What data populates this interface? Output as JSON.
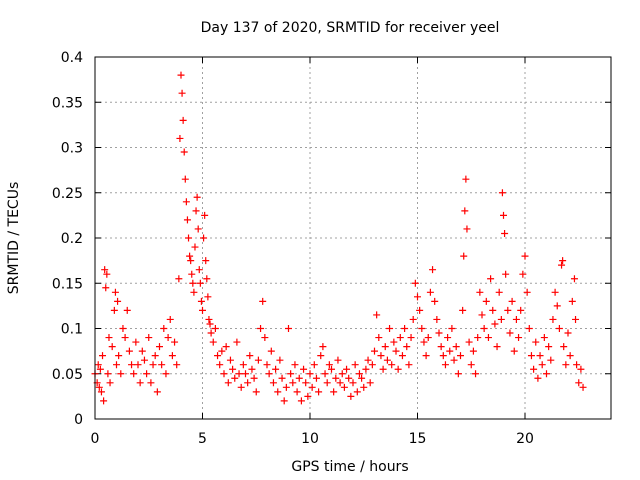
{
  "chart_data": {
    "type": "scatter",
    "title": "Day 137 of 2020, SRMTID for receiver yeel",
    "xlabel": "GPS time / hours",
    "ylabel": "SRMTID / TECUs",
    "xlim": [
      0,
      24
    ],
    "ylim": [
      0,
      0.4
    ],
    "xticks": [
      0,
      5,
      10,
      15,
      20
    ],
    "xtick_labels": [
      "0",
      "5",
      "10",
      "15",
      "20"
    ],
    "yticks": [
      0,
      0.05,
      0.1,
      0.15,
      0.2,
      0.25,
      0.3,
      0.35,
      0.4
    ],
    "ytick_labels": [
      "0",
      "0.05",
      "0.1",
      "0.15",
      "0.2",
      "0.25",
      "0.3",
      "0.35",
      "0.4"
    ],
    "grid": true,
    "marker": "+",
    "series": [
      {
        "name": "SRMTID",
        "color": "#ff0000",
        "points": [
          [
            0.0,
            0.05
          ],
          [
            0.1,
            0.04
          ],
          [
            0.15,
            0.06
          ],
          [
            0.2,
            0.035
          ],
          [
            0.25,
            0.055
          ],
          [
            0.3,
            0.03
          ],
          [
            0.35,
            0.07
          ],
          [
            0.4,
            0.02
          ],
          [
            0.45,
            0.165
          ],
          [
            0.5,
            0.145
          ],
          [
            0.55,
            0.16
          ],
          [
            0.6,
            0.05
          ],
          [
            0.65,
            0.09
          ],
          [
            0.7,
            0.04
          ],
          [
            0.8,
            0.08
          ],
          [
            0.9,
            0.12
          ],
          [
            0.95,
            0.14
          ],
          [
            1.0,
            0.06
          ],
          [
            1.05,
            0.13
          ],
          [
            1.1,
            0.07
          ],
          [
            1.2,
            0.05
          ],
          [
            1.3,
            0.1
          ],
          [
            1.4,
            0.09
          ],
          [
            1.5,
            0.12
          ],
          [
            1.6,
            0.075
          ],
          [
            1.7,
            0.06
          ],
          [
            1.8,
            0.05
          ],
          [
            1.9,
            0.085
          ],
          [
            2.0,
            0.06
          ],
          [
            2.1,
            0.04
          ],
          [
            2.2,
            0.075
          ],
          [
            2.3,
            0.065
          ],
          [
            2.4,
            0.05
          ],
          [
            2.5,
            0.09
          ],
          [
            2.6,
            0.04
          ],
          [
            2.7,
            0.06
          ],
          [
            2.8,
            0.07
          ],
          [
            2.9,
            0.03
          ],
          [
            3.0,
            0.08
          ],
          [
            3.1,
            0.06
          ],
          [
            3.2,
            0.1
          ],
          [
            3.3,
            0.05
          ],
          [
            3.4,
            0.09
          ],
          [
            3.5,
            0.11
          ],
          [
            3.6,
            0.07
          ],
          [
            3.7,
            0.085
          ],
          [
            3.8,
            0.06
          ],
          [
            3.9,
            0.155
          ],
          [
            3.95,
            0.31
          ],
          [
            4.0,
            0.38
          ],
          [
            4.05,
            0.36
          ],
          [
            4.1,
            0.33
          ],
          [
            4.15,
            0.295
          ],
          [
            4.2,
            0.265
          ],
          [
            4.25,
            0.24
          ],
          [
            4.3,
            0.22
          ],
          [
            4.35,
            0.2
          ],
          [
            4.4,
            0.18
          ],
          [
            4.45,
            0.175
          ],
          [
            4.5,
            0.16
          ],
          [
            4.55,
            0.15
          ],
          [
            4.6,
            0.14
          ],
          [
            4.65,
            0.19
          ],
          [
            4.7,
            0.23
          ],
          [
            4.75,
            0.245
          ],
          [
            4.8,
            0.21
          ],
          [
            4.85,
            0.165
          ],
          [
            4.9,
            0.15
          ],
          [
            4.95,
            0.13
          ],
          [
            5.0,
            0.12
          ],
          [
            5.05,
            0.2
          ],
          [
            5.1,
            0.225
          ],
          [
            5.15,
            0.175
          ],
          [
            5.2,
            0.155
          ],
          [
            5.25,
            0.135
          ],
          [
            5.3,
            0.11
          ],
          [
            5.35,
            0.105
          ],
          [
            5.4,
            0.095
          ],
          [
            5.5,
            0.085
          ],
          [
            5.6,
            0.1
          ],
          [
            5.7,
            0.07
          ],
          [
            5.8,
            0.06
          ],
          [
            5.9,
            0.075
          ],
          [
            6.0,
            0.05
          ],
          [
            6.1,
            0.08
          ],
          [
            6.2,
            0.04
          ],
          [
            6.3,
            0.065
          ],
          [
            6.4,
            0.055
          ],
          [
            6.5,
            0.045
          ],
          [
            6.6,
            0.085
          ],
          [
            6.7,
            0.05
          ],
          [
            6.8,
            0.035
          ],
          [
            6.9,
            0.06
          ],
          [
            7.0,
            0.05
          ],
          [
            7.1,
            0.04
          ],
          [
            7.2,
            0.07
          ],
          [
            7.3,
            0.055
          ],
          [
            7.4,
            0.045
          ],
          [
            7.5,
            0.03
          ],
          [
            7.6,
            0.065
          ],
          [
            7.7,
            0.1
          ],
          [
            7.8,
            0.13
          ],
          [
            7.9,
            0.09
          ],
          [
            8.0,
            0.06
          ],
          [
            8.1,
            0.05
          ],
          [
            8.2,
            0.075
          ],
          [
            8.3,
            0.04
          ],
          [
            8.4,
            0.055
          ],
          [
            8.5,
            0.03
          ],
          [
            8.6,
            0.065
          ],
          [
            8.7,
            0.045
          ],
          [
            8.8,
            0.02
          ],
          [
            8.9,
            0.035
          ],
          [
            9.0,
            0.1
          ],
          [
            9.1,
            0.05
          ],
          [
            9.2,
            0.04
          ],
          [
            9.3,
            0.06
          ],
          [
            9.4,
            0.03
          ],
          [
            9.5,
            0.045
          ],
          [
            9.6,
            0.02
          ],
          [
            9.7,
            0.055
          ],
          [
            9.8,
            0.04
          ],
          [
            9.9,
            0.025
          ],
          [
            10.0,
            0.05
          ],
          [
            10.1,
            0.035
          ],
          [
            10.2,
            0.06
          ],
          [
            10.3,
            0.045
          ],
          [
            10.4,
            0.03
          ],
          [
            10.5,
            0.07
          ],
          [
            10.6,
            0.08
          ],
          [
            10.7,
            0.05
          ],
          [
            10.8,
            0.04
          ],
          [
            10.9,
            0.06
          ],
          [
            11.0,
            0.055
          ],
          [
            11.1,
            0.03
          ],
          [
            11.2,
            0.045
          ],
          [
            11.3,
            0.065
          ],
          [
            11.4,
            0.04
          ],
          [
            11.5,
            0.05
          ],
          [
            11.6,
            0.035
          ],
          [
            11.7,
            0.055
          ],
          [
            11.8,
            0.045
          ],
          [
            11.9,
            0.025
          ],
          [
            12.0,
            0.04
          ],
          [
            12.1,
            0.06
          ],
          [
            12.2,
            0.03
          ],
          [
            12.3,
            0.05
          ],
          [
            12.4,
            0.045
          ],
          [
            12.5,
            0.035
          ],
          [
            12.6,
            0.055
          ],
          [
            12.7,
            0.065
          ],
          [
            12.8,
            0.04
          ],
          [
            12.9,
            0.06
          ],
          [
            13.0,
            0.075
          ],
          [
            13.1,
            0.115
          ],
          [
            13.2,
            0.09
          ],
          [
            13.3,
            0.07
          ],
          [
            13.4,
            0.055
          ],
          [
            13.5,
            0.08
          ],
          [
            13.6,
            0.065
          ],
          [
            13.7,
            0.1
          ],
          [
            13.8,
            0.06
          ],
          [
            13.9,
            0.085
          ],
          [
            14.0,
            0.075
          ],
          [
            14.1,
            0.055
          ],
          [
            14.2,
            0.09
          ],
          [
            14.3,
            0.07
          ],
          [
            14.4,
            0.1
          ],
          [
            14.5,
            0.08
          ],
          [
            14.6,
            0.06
          ],
          [
            14.7,
            0.09
          ],
          [
            14.8,
            0.11
          ],
          [
            14.9,
            0.15
          ],
          [
            15.0,
            0.135
          ],
          [
            15.1,
            0.12
          ],
          [
            15.2,
            0.1
          ],
          [
            15.3,
            0.085
          ],
          [
            15.4,
            0.07
          ],
          [
            15.5,
            0.09
          ],
          [
            15.6,
            0.14
          ],
          [
            15.7,
            0.165
          ],
          [
            15.8,
            0.13
          ],
          [
            15.9,
            0.11
          ],
          [
            16.0,
            0.095
          ],
          [
            16.1,
            0.08
          ],
          [
            16.2,
            0.07
          ],
          [
            16.3,
            0.06
          ],
          [
            16.4,
            0.09
          ],
          [
            16.5,
            0.075
          ],
          [
            16.6,
            0.1
          ],
          [
            16.7,
            0.065
          ],
          [
            16.8,
            0.08
          ],
          [
            16.9,
            0.05
          ],
          [
            17.0,
            0.07
          ],
          [
            17.1,
            0.12
          ],
          [
            17.15,
            0.18
          ],
          [
            17.2,
            0.23
          ],
          [
            17.25,
            0.265
          ],
          [
            17.3,
            0.21
          ],
          [
            17.4,
            0.085
          ],
          [
            17.5,
            0.06
          ],
          [
            17.6,
            0.075
          ],
          [
            17.7,
            0.05
          ],
          [
            17.8,
            0.09
          ],
          [
            17.9,
            0.14
          ],
          [
            18.0,
            0.115
          ],
          [
            18.1,
            0.1
          ],
          [
            18.2,
            0.13
          ],
          [
            18.3,
            0.09
          ],
          [
            18.4,
            0.155
          ],
          [
            18.5,
            0.12
          ],
          [
            18.6,
            0.105
          ],
          [
            18.7,
            0.08
          ],
          [
            18.8,
            0.14
          ],
          [
            18.9,
            0.11
          ],
          [
            18.95,
            0.25
          ],
          [
            19.0,
            0.225
          ],
          [
            19.05,
            0.205
          ],
          [
            19.1,
            0.16
          ],
          [
            19.2,
            0.12
          ],
          [
            19.3,
            0.095
          ],
          [
            19.4,
            0.13
          ],
          [
            19.5,
            0.075
          ],
          [
            19.6,
            0.11
          ],
          [
            19.7,
            0.09
          ],
          [
            19.8,
            0.12
          ],
          [
            19.9,
            0.16
          ],
          [
            20.0,
            0.18
          ],
          [
            20.1,
            0.14
          ],
          [
            20.2,
            0.1
          ],
          [
            20.3,
            0.07
          ],
          [
            20.4,
            0.055
          ],
          [
            20.5,
            0.085
          ],
          [
            20.6,
            0.045
          ],
          [
            20.7,
            0.07
          ],
          [
            20.8,
            0.06
          ],
          [
            20.9,
            0.09
          ],
          [
            21.0,
            0.05
          ],
          [
            21.1,
            0.08
          ],
          [
            21.2,
            0.065
          ],
          [
            21.3,
            0.11
          ],
          [
            21.4,
            0.14
          ],
          [
            21.5,
            0.125
          ],
          [
            21.6,
            0.1
          ],
          [
            21.7,
            0.17
          ],
          [
            21.75,
            0.175
          ],
          [
            21.8,
            0.08
          ],
          [
            21.9,
            0.06
          ],
          [
            22.0,
            0.095
          ],
          [
            22.1,
            0.07
          ],
          [
            22.2,
            0.13
          ],
          [
            22.3,
            0.155
          ],
          [
            22.35,
            0.11
          ],
          [
            22.4,
            0.06
          ],
          [
            22.5,
            0.04
          ],
          [
            22.6,
            0.055
          ],
          [
            22.7,
            0.035
          ]
        ]
      }
    ]
  }
}
